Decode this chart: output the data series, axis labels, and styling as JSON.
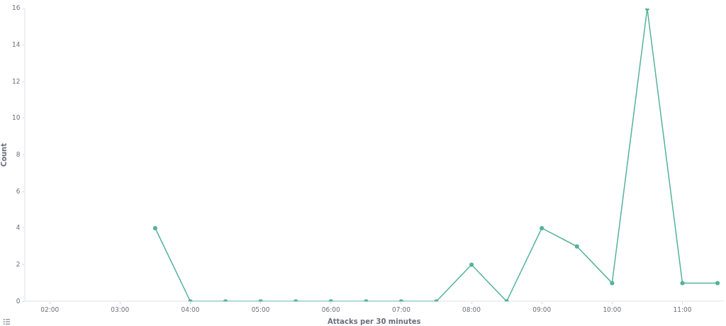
{
  "chart_data": {
    "type": "line",
    "xlabel": "Attacks per 30 minutes",
    "ylabel": "Count",
    "x": [
      3.5,
      4,
      4.5,
      5,
      5.5,
      6,
      6.5,
      7,
      7.5,
      8,
      8.5,
      9,
      9.5,
      10,
      10.5,
      11,
      11.5
    ],
    "series": [
      {
        "color": "#54b399",
        "values": [
          4,
          0,
          0,
          0,
          0,
          0,
          0,
          0,
          0,
          2,
          0,
          4,
          3,
          1,
          16,
          1,
          1
        ]
      }
    ],
    "xlim": [
      1.65,
      11.58
    ],
    "xticks": [
      {
        "value": 2,
        "label": "02:00"
      },
      {
        "value": 3,
        "label": "03:00"
      },
      {
        "value": 4,
        "label": "04:00"
      },
      {
        "value": 5,
        "label": "05:00"
      },
      {
        "value": 6,
        "label": "06:00"
      },
      {
        "value": 7,
        "label": "07:00"
      },
      {
        "value": 8,
        "label": "08:00"
      },
      {
        "value": 9,
        "label": "09:00"
      },
      {
        "value": 10,
        "label": "10:00"
      },
      {
        "value": 11,
        "label": "11:00"
      }
    ],
    "ylim": [
      0,
      16
    ],
    "yticks": [
      0,
      2,
      4,
      6,
      8,
      10,
      12,
      14,
      16
    ],
    "grid": false,
    "legend": false,
    "marker": "circle",
    "line_style": "solid"
  }
}
